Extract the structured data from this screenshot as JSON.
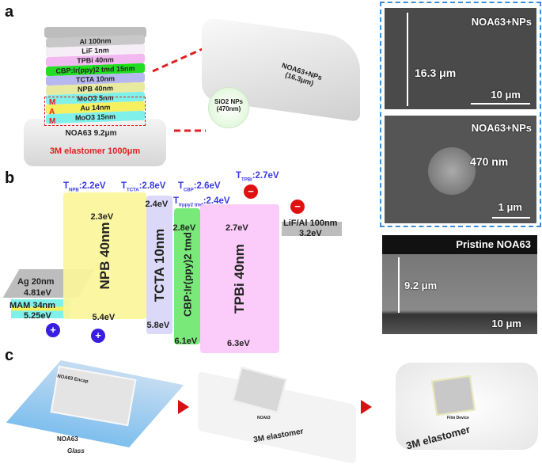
{
  "panel_labels": {
    "a": "a",
    "b": "b",
    "c": "c"
  },
  "panel_a": {
    "layers": [
      {
        "label": "Al 100nm",
        "color": "#c8c8c8"
      },
      {
        "label": "LiF 1nm",
        "color": "#f6eef6"
      },
      {
        "label": "TPBi 40nm",
        "color": "#f2b8f0"
      },
      {
        "label": "CBP:Ir(ppy)2 tmd 15nm",
        "color": "#22dd22"
      },
      {
        "label": "TCTA 10nm",
        "color": "#b8b8f0"
      },
      {
        "label": "NPB 40nm",
        "color": "#e8eaa0"
      },
      {
        "label": "MoO3 5nm",
        "color": "#7ff0ea"
      },
      {
        "label": "Au 14nm",
        "color": "#f5f060"
      },
      {
        "label": "MoO3 15nm",
        "color": "#7ff0ea"
      }
    ],
    "mam_letters": [
      "M",
      "A",
      "M"
    ],
    "substrate": "NOA63 9.2μm",
    "elastomer": "3M elastomer 1000μm",
    "film_label": "NOA63+NPs (16.3μm)",
    "nps_label": "SiO2 NPs (470nm)",
    "sem_top": {
      "title": "NOA63+NPs",
      "thickness": "16.3 μm",
      "scale": "10 μm"
    },
    "sem_bottom": {
      "title": "NOA63+NPs",
      "size": "470 nm",
      "scale": "1 μm"
    },
    "sem_pristine": {
      "title": "Pristine NOA63",
      "thickness": "9.2 μm",
      "scale": "10 μm"
    }
  },
  "panel_b": {
    "triplets": [
      {
        "t": "T",
        "sub": "NPB",
        "value": ":2.2eV"
      },
      {
        "t": "T",
        "sub": "TCTA",
        "value": ":2.8eV"
      },
      {
        "t": "T",
        "sub": "CBP",
        "value": ":2.6eV"
      },
      {
        "t": "T",
        "sub": "Irppy2 tmd",
        "value": ":2.4eV"
      },
      {
        "t": "T",
        "sub": "TPBi",
        "value": ":2.7eV"
      }
    ],
    "blocks": [
      {
        "name": "NPB 40nm",
        "lumo": "2.3eV",
        "homo": "5.4eV",
        "color": "#fbf59a"
      },
      {
        "name": "TCTA 10nm",
        "lumo": "2.4eV",
        "homo": "5.8eV",
        "color": "#d8d6f6"
      },
      {
        "name": "CBP:Ir(ppy)2 tmd",
        "lumo": "2.8eV",
        "homo": "6.1eV",
        "color": "#6ee86e"
      },
      {
        "name": "TPBi 40nm",
        "lumo": "2.7eV",
        "homo": "6.3eV",
        "color": "#fbc8f8"
      }
    ],
    "cathode": {
      "name": "LiF/Al 100nm",
      "wf": "3.2eV"
    },
    "anode": {
      "name": "Ag 20nm",
      "wf": "4.81eV"
    },
    "mam": {
      "name": "MAM 34nm",
      "wf": "5.25eV"
    },
    "hole_symbol": "+",
    "electron_symbol": "−"
  },
  "panel_c": {
    "step1": {
      "encap": "NOA63 Encap",
      "noa": "NOA63",
      "glass": "Glass"
    },
    "step2": {
      "noa": "NOA63",
      "elastomer": "3M elastomer"
    },
    "step3": {
      "device": "Film Device",
      "elastomer": "3M elastomer"
    }
  }
}
